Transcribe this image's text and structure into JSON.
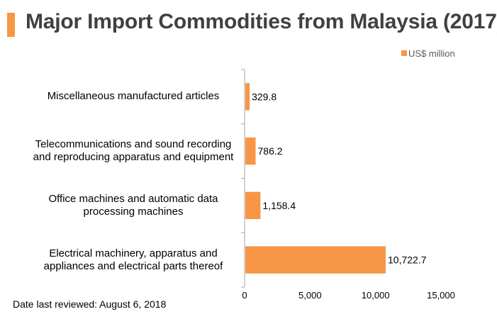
{
  "header": {
    "title": "Major Import Commodities from Malaysia (2017)",
    "accent_color": "#f79646"
  },
  "chart_data": {
    "type": "bar",
    "orientation": "horizontal",
    "categories": [
      "Miscellaneous manufactured articles",
      "Telecommunications and sound recording and reproducing apparatus and equipment",
      "Office machines and automatic data processing machines",
      "Electrical machinery, apparatus and appliances and electrical parts thereof"
    ],
    "series": [
      {
        "name": "US$ million",
        "values": [
          329.8,
          786.2,
          1158.4,
          10722.7
        ],
        "labels": [
          "329.8",
          "786.2",
          "1,158.4",
          "10,722.7"
        ],
        "color": "#f79646"
      }
    ],
    "xlim": [
      0,
      15000
    ],
    "xticks": [
      0,
      5000,
      10000,
      15000
    ],
    "xtick_labels": [
      "0",
      "5,000",
      "10,000",
      "15,000"
    ],
    "legend": {
      "position": "top-right",
      "label": "US$ million"
    },
    "grid": false
  },
  "footer": {
    "note": "Date last reviewed: August 6, 2018"
  }
}
